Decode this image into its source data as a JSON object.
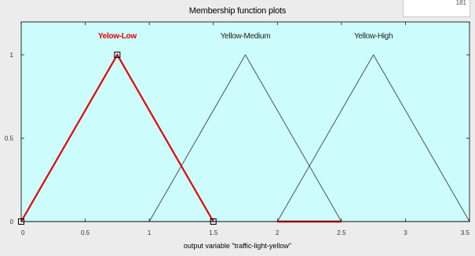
{
  "window": {
    "title": "Membership function plots",
    "corner_text": "181"
  },
  "chart_data": {
    "type": "line",
    "xlabel": "output variable \"traffic-light-yellow\"",
    "ylabel": "",
    "xlim": [
      0,
      3.5
    ],
    "ylim": [
      0,
      1.0
    ],
    "x_ticks": [
      "0",
      "0.5",
      "1",
      "1.5",
      "2",
      "2.5",
      "3",
      "3.5"
    ],
    "x_tick_values": [
      0,
      0.5,
      1,
      1.5,
      2,
      2.5,
      3,
      3.5
    ],
    "y_ticks": [
      "0",
      "0.5",
      "1"
    ],
    "y_tick_values": [
      0,
      0.5,
      1
    ],
    "grid": false,
    "background_color": "#ccfcfc",
    "series": [
      {
        "name": "Yelow-Low",
        "x": [
          0,
          0.75,
          1.5
        ],
        "y": [
          0,
          1,
          0
        ],
        "color": "#e60000",
        "selected": true
      },
      {
        "name": "Yellow-Medium",
        "x": [
          1,
          1.75,
          2.5
        ],
        "y": [
          0,
          1,
          0
        ],
        "color": "#404040",
        "selected": false
      },
      {
        "name": "Yellow-High",
        "x": [
          2,
          2.75,
          3.5
        ],
        "y": [
          0,
          1,
          0
        ],
        "color": "#404040",
        "selected": false
      }
    ]
  }
}
